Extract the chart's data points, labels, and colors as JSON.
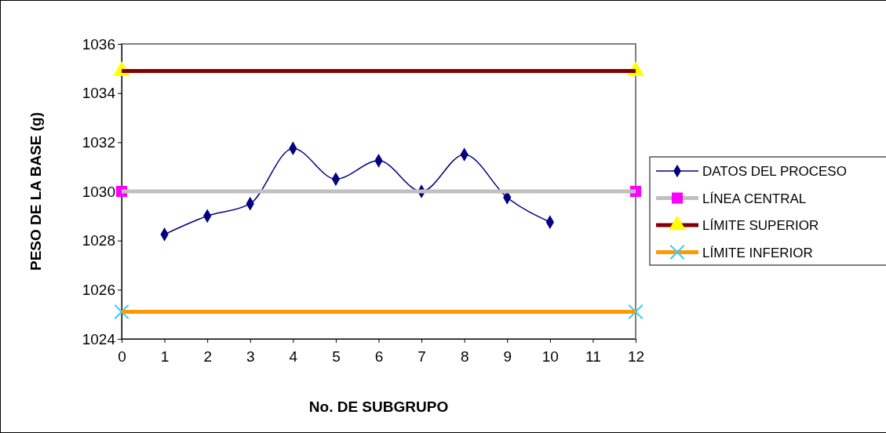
{
  "chart_data": {
    "type": "line",
    "xlabel": "No. DE SUBGRUPO",
    "ylabel": "PESO DE LA BASE (g)",
    "xlim": [
      0,
      12
    ],
    "xticks": [
      0,
      1,
      2,
      3,
      4,
      5,
      6,
      7,
      8,
      9,
      10,
      11,
      12
    ],
    "ylim": [
      1024,
      1036
    ],
    "yticks": [
      1024,
      1026,
      1028,
      1030,
      1032,
      1034,
      1036
    ],
    "grid": false,
    "legend": "right",
    "line_style": "solid",
    "series": [
      {
        "name": "DATOS DEL PROCESO",
        "color": "#000080",
        "marker": "diamond",
        "x": [
          1,
          2,
          3,
          4,
          5,
          6,
          7,
          8,
          9,
          10
        ],
        "values": [
          1028.25,
          1029,
          1029.5,
          1031.75,
          1030.5,
          1031.25,
          1030,
          1031.5,
          1029.75,
          1028.75
        ]
      },
      {
        "name": "LÍNEA CENTRAL",
        "color": "#c0c0c0",
        "marker": "square",
        "colors": [
          "#ff00ff",
          "#ff00ff"
        ],
        "x": [
          0,
          12
        ],
        "values": [
          1030,
          1030
        ]
      },
      {
        "name": "LÍMITE SUPERIOR",
        "color": "#800000",
        "marker": "triangle",
        "colors": [
          "#ffff00",
          "#ffff00"
        ],
        "x": [
          0,
          12
        ],
        "values": [
          1034.9,
          1034.9
        ]
      },
      {
        "name": "LÍMITE INFERIOR",
        "color": "#ff9900",
        "marker": "cross",
        "colors": [
          "#33ccff",
          "#33ccff"
        ],
        "x": [
          0,
          12
        ],
        "values": [
          1025.1,
          1025.1
        ]
      }
    ]
  }
}
